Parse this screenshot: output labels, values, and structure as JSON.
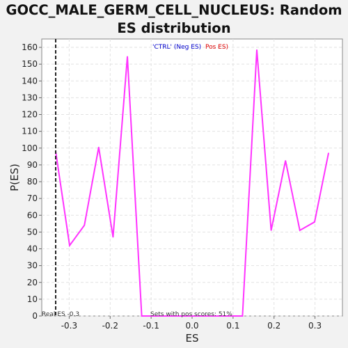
{
  "chart_data": {
    "type": "line",
    "title": "GOCC_MALE_GERM_CELL_NUCLEUS: Random ES distribution",
    "xlabel": "ES",
    "ylabel": "P(ES)",
    "xlim": [
      -0.367,
      0.367
    ],
    "ylim": [
      0,
      165
    ],
    "xticks": [
      -0.3,
      -0.2,
      -0.1,
      0.0,
      0.1,
      0.2,
      0.3
    ],
    "xtick_labels": [
      "-0.3",
      "-0.2",
      "-0.1",
      "0.0",
      "0.1",
      "0.2",
      "0.3"
    ],
    "yticks": [
      0,
      10,
      20,
      30,
      40,
      50,
      60,
      70,
      80,
      90,
      100,
      110,
      120,
      130,
      140,
      150,
      160
    ],
    "ytick_labels": [
      "0",
      "10",
      "20",
      "30",
      "40",
      "50",
      "60",
      "70",
      "80",
      "90",
      "100",
      "110",
      "120",
      "130",
      "140",
      "150",
      "160"
    ],
    "grid": true,
    "series": [
      {
        "color": "#ff33ff",
        "x": [
          -0.333,
          -0.299,
          -0.263,
          -0.228,
          -0.193,
          -0.158,
          -0.123,
          -0.088,
          -0.053,
          -0.018,
          0.018,
          0.053,
          0.088,
          0.123,
          0.158,
          0.193,
          0.228,
          0.263,
          0.299,
          0.333
        ],
        "y": [
          98,
          42,
          54,
          100.5,
          47,
          154.5,
          0,
          0,
          0,
          0,
          0,
          0,
          0,
          0,
          158.5,
          51,
          92.5,
          51,
          56,
          97
        ]
      }
    ],
    "real_es": {
      "value": -0.333,
      "label": "Real ES -0.3"
    },
    "annotations": {
      "neg_label": "'CTRL' (Neg ES)",
      "neg_color": "#0000cc",
      "pos_label": "Pos ES)",
      "pos_color": "#dd0000",
      "pos_scores": "Sets with pos scores: 51%"
    }
  }
}
